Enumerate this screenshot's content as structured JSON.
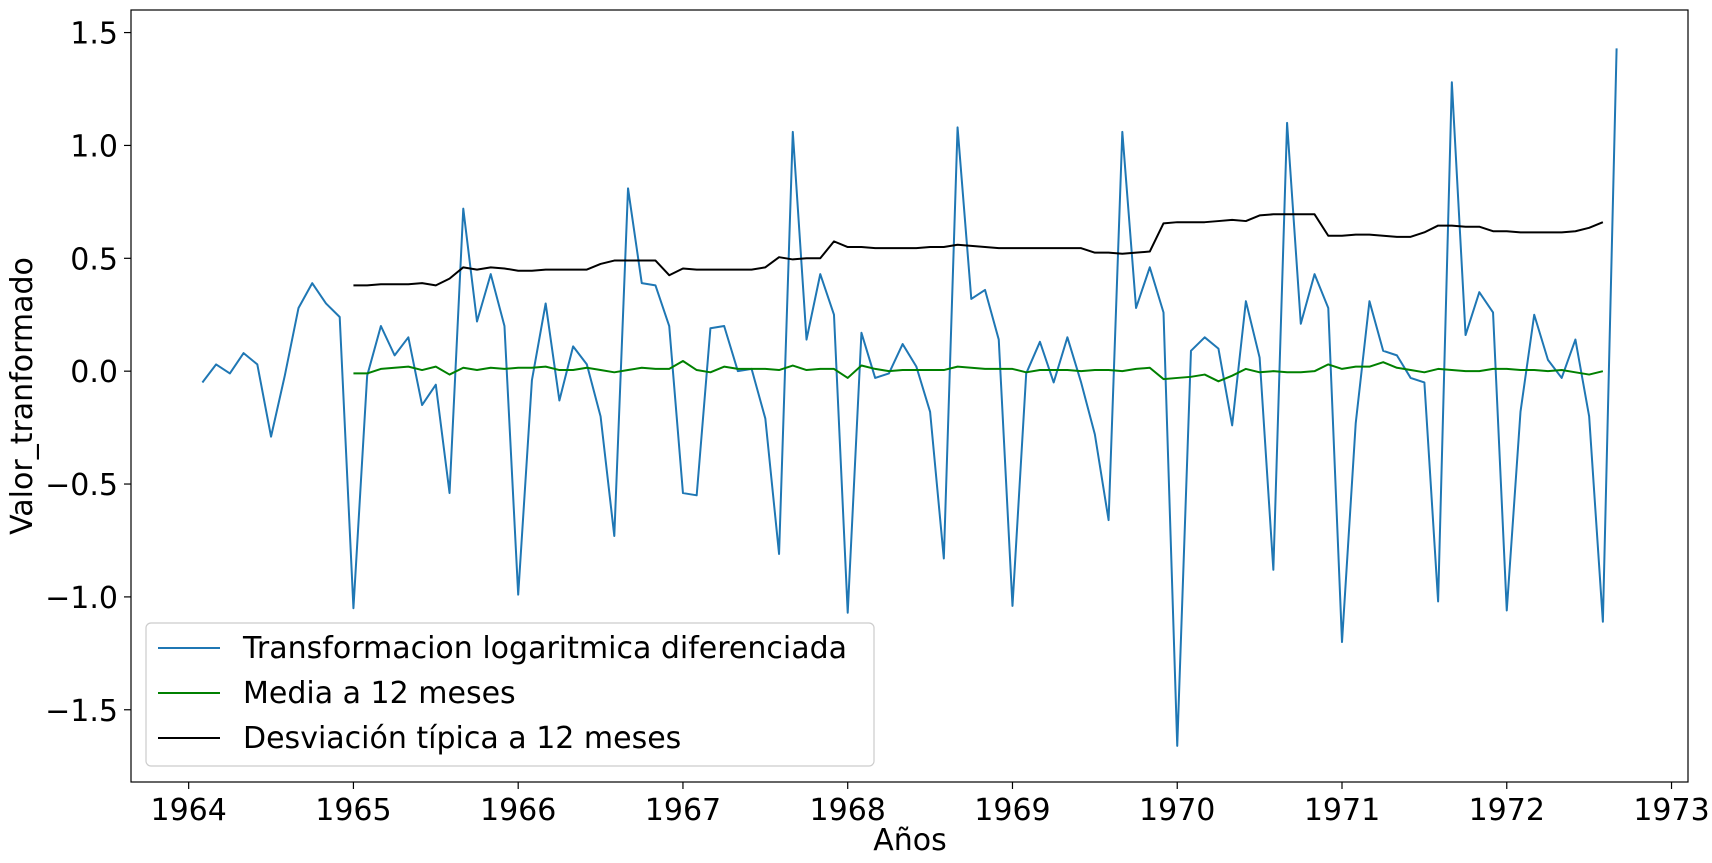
{
  "chart_data": {
    "type": "line",
    "xlabel": "Años",
    "ylabel": "Valor_tranformado",
    "xlim": [
      1963.65,
      1973.1
    ],
    "ylim": [
      -1.82,
      1.6
    ],
    "x_ticks": [
      {
        "value": 1964,
        "label": "1964"
      },
      {
        "value": 1965,
        "label": "1965"
      },
      {
        "value": 1966,
        "label": "1966"
      },
      {
        "value": 1967,
        "label": "1967"
      },
      {
        "value": 1968,
        "label": "1968"
      },
      {
        "value": 1969,
        "label": "1969"
      },
      {
        "value": 1970,
        "label": "1970"
      },
      {
        "value": 1971,
        "label": "1971"
      },
      {
        "value": 1972,
        "label": "1972"
      },
      {
        "value": 1973,
        "label": "1973"
      }
    ],
    "y_ticks": [
      {
        "value": 1.5,
        "label": "1.5"
      },
      {
        "value": 1.0,
        "label": "1.0"
      },
      {
        "value": 0.5,
        "label": "0.5"
      },
      {
        "value": 0.0,
        "label": "0.0"
      },
      {
        "value": -0.5,
        "label": "−0.5"
      },
      {
        "value": -1.0,
        "label": "−1.0"
      },
      {
        "value": -1.5,
        "label": "−1.5"
      }
    ],
    "grid": false,
    "legend": "lower-left",
    "start_year": 1964,
    "start_month": 2,
    "series": [
      {
        "name": "Transformacion logaritmica diferenciada",
        "color": "#1f77b4",
        "values": [
          -0.05,
          0.03,
          -0.01,
          0.08,
          0.03,
          -0.29,
          -0.02,
          0.28,
          0.39,
          0.3,
          0.24,
          -1.05,
          -0.02,
          0.2,
          0.07,
          0.15,
          -0.15,
          -0.06,
          -0.54,
          0.72,
          0.22,
          0.43,
          0.2,
          -0.99,
          -0.04,
          0.3,
          -0.13,
          0.11,
          0.03,
          -0.2,
          -0.73,
          0.81,
          0.39,
          0.38,
          0.2,
          -0.54,
          -0.55,
          0.19,
          0.2,
          0.0,
          0.01,
          -0.21,
          -0.81,
          1.06,
          0.14,
          0.43,
          0.25,
          -1.07,
          0.17,
          -0.03,
          -0.01,
          0.12,
          0.02,
          -0.18,
          -0.83,
          1.08,
          0.32,
          0.36,
          0.14,
          -1.04,
          -0.01,
          0.13,
          -0.05,
          0.15,
          -0.05,
          -0.28,
          -0.66,
          1.06,
          0.28,
          0.46,
          0.26,
          -1.66,
          0.09,
          0.15,
          0.1,
          -0.24,
          0.31,
          0.06,
          -0.88,
          1.1,
          0.21,
          0.43,
          0.28,
          -1.2,
          -0.23,
          0.31,
          0.09,
          0.07,
          -0.03,
          -0.05,
          -1.02,
          1.28,
          0.16,
          0.35,
          0.26,
          -1.06,
          -0.18,
          0.25,
          0.05,
          -0.03,
          0.14,
          -0.2,
          -1.11,
          1.43
        ]
      },
      {
        "name": "Media a 12 meses",
        "color": "#008000",
        "offset": 11,
        "values": [
          -0.01,
          -0.01,
          0.01,
          0.015,
          0.02,
          0.005,
          0.02,
          -0.015,
          0.015,
          0.005,
          0.015,
          0.01,
          0.015,
          0.015,
          0.02,
          0.005,
          0.005,
          0.015,
          0.005,
          -0.005,
          0.005,
          0.015,
          0.01,
          0.01,
          0.045,
          0.005,
          -0.005,
          0.02,
          0.01,
          0.01,
          0.01,
          0.005,
          0.025,
          0.005,
          0.01,
          0.01,
          -0.03,
          0.025,
          0.01,
          0.0,
          0.005,
          0.005,
          0.005,
          0.005,
          0.02,
          0.015,
          0.01,
          0.01,
          0.01,
          -0.005,
          0.005,
          0.005,
          0.005,
          0.0,
          0.005,
          0.005,
          0.0,
          0.01,
          0.015,
          -0.035,
          -0.03,
          -0.025,
          -0.015,
          -0.045,
          -0.02,
          0.01,
          -0.005,
          0.0,
          -0.005,
          -0.005,
          0.0,
          0.03,
          0.01,
          0.02,
          0.02,
          0.04,
          0.015,
          0.005,
          -0.005,
          0.01,
          0.005,
          0.0,
          0.0,
          0.01,
          0.01,
          0.005,
          0.005,
          0.0,
          0.005,
          -0.005,
          -0.015,
          0.0
        ]
      },
      {
        "name": "Desviación típica a 12 meses",
        "color": "#000000",
        "offset": 11,
        "values": [
          0.38,
          0.38,
          0.385,
          0.385,
          0.385,
          0.39,
          0.38,
          0.41,
          0.46,
          0.45,
          0.46,
          0.455,
          0.445,
          0.445,
          0.45,
          0.45,
          0.45,
          0.45,
          0.475,
          0.49,
          0.49,
          0.49,
          0.49,
          0.425,
          0.455,
          0.45,
          0.45,
          0.45,
          0.45,
          0.45,
          0.46,
          0.505,
          0.495,
          0.5,
          0.5,
          0.575,
          0.55,
          0.55,
          0.545,
          0.545,
          0.545,
          0.545,
          0.55,
          0.55,
          0.56,
          0.555,
          0.55,
          0.545,
          0.545,
          0.545,
          0.545,
          0.545,
          0.545,
          0.545,
          0.525,
          0.525,
          0.52,
          0.525,
          0.53,
          0.655,
          0.66,
          0.66,
          0.66,
          0.665,
          0.67,
          0.665,
          0.69,
          0.695,
          0.695,
          0.695,
          0.695,
          0.6,
          0.6,
          0.605,
          0.605,
          0.6,
          0.595,
          0.595,
          0.615,
          0.645,
          0.645,
          0.64,
          0.64,
          0.62,
          0.62,
          0.615,
          0.615,
          0.615,
          0.615,
          0.62,
          0.635,
          0.66
        ]
      }
    ]
  }
}
